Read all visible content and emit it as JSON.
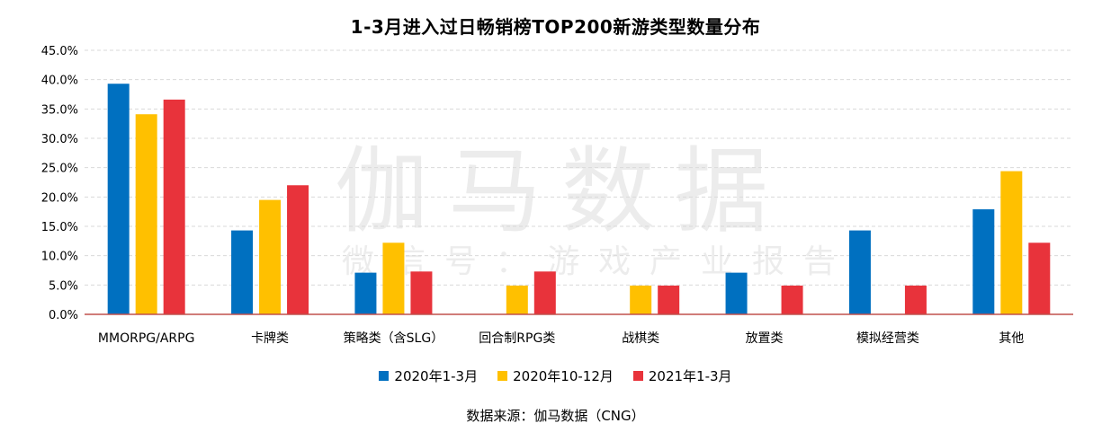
{
  "watermark": {
    "main": "伽马数据",
    "sub": "微信号：游戏产业报告"
  },
  "legend": [
    {
      "name": "2020年1-3月",
      "color": "#0070c0"
    },
    {
      "name": "2020年10-12月",
      "color": "#ffc000"
    },
    {
      "name": "2021年1-3月",
      "color": "#e8333b"
    }
  ],
  "source": "数据来源：伽马数据（CNG）",
  "chart_data": {
    "type": "bar",
    "title": "1-3月进入过日畅销榜TOP200新游类型数量分布",
    "xlabel": "",
    "ylabel": "",
    "ylim": [
      0,
      45
    ],
    "ytick_labels": [
      "0.0%",
      "5.0%",
      "10.0%",
      "15.0%",
      "20.0%",
      "25.0%",
      "30.0%",
      "35.0%",
      "40.0%",
      "45.0%"
    ],
    "grid": true,
    "legend_position": "bottom",
    "categories": [
      "MMORPG/ARPG",
      "卡牌类",
      "策略类（含SLG）",
      "回合制RPG类",
      "战棋类",
      "放置类",
      "模拟经营类",
      "其他"
    ],
    "series": [
      {
        "name": "2020年1-3月",
        "color": "#0070c0",
        "values": [
          39.3,
          14.3,
          7.1,
          0,
          0,
          7.1,
          14.3,
          17.9
        ]
      },
      {
        "name": "2020年10-12月",
        "color": "#ffc000",
        "values": [
          34.1,
          19.5,
          12.2,
          4.9,
          4.9,
          0,
          0,
          24.4
        ]
      },
      {
        "name": "2021年1-3月",
        "color": "#e8333b",
        "values": [
          36.6,
          22.0,
          7.3,
          7.3,
          4.9,
          4.9,
          4.9,
          12.2
        ]
      }
    ]
  }
}
